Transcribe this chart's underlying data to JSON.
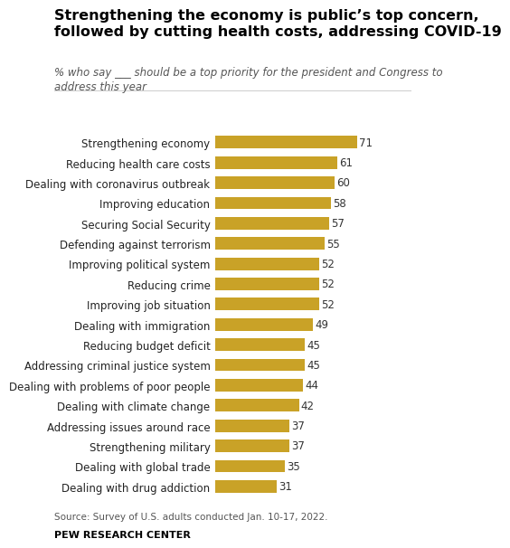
{
  "title_line1": "Strengthening the economy is public’s top concern,",
  "title_line2": "followed by cutting health costs, addressing COVID-19",
  "subtitle": "% who say ___ should be a top priority for the president and Congress to\naddress this year",
  "source": "Source: Survey of U.S. adults conducted Jan. 10-17, 2022.",
  "branding": "PEW RESEARCH CENTER",
  "categories": [
    "Strengthening economy",
    "Reducing health care costs",
    "Dealing with coronavirus outbreak",
    "Improving education",
    "Securing Social Security",
    "Defending against terrorism",
    "Improving political system",
    "Reducing crime",
    "Improving job situation",
    "Dealing with immigration",
    "Reducing budget deficit",
    "Addressing criminal justice system",
    "Dealing with problems of poor people",
    "Dealing with climate change",
    "Addressing issues around race",
    "Strengthening military",
    "Dealing with global trade",
    "Dealing with drug addiction"
  ],
  "values": [
    71,
    61,
    60,
    58,
    57,
    55,
    52,
    52,
    52,
    49,
    45,
    45,
    44,
    42,
    37,
    37,
    35,
    31
  ],
  "bar_color": "#C9A227",
  "background_color": "#FFFFFF",
  "xlim": [
    0,
    80
  ],
  "title_fontsize": 11.5,
  "subtitle_fontsize": 8.5,
  "label_fontsize": 8.5,
  "value_fontsize": 8.5,
  "source_fontsize": 7.5,
  "branding_fontsize": 8.0
}
